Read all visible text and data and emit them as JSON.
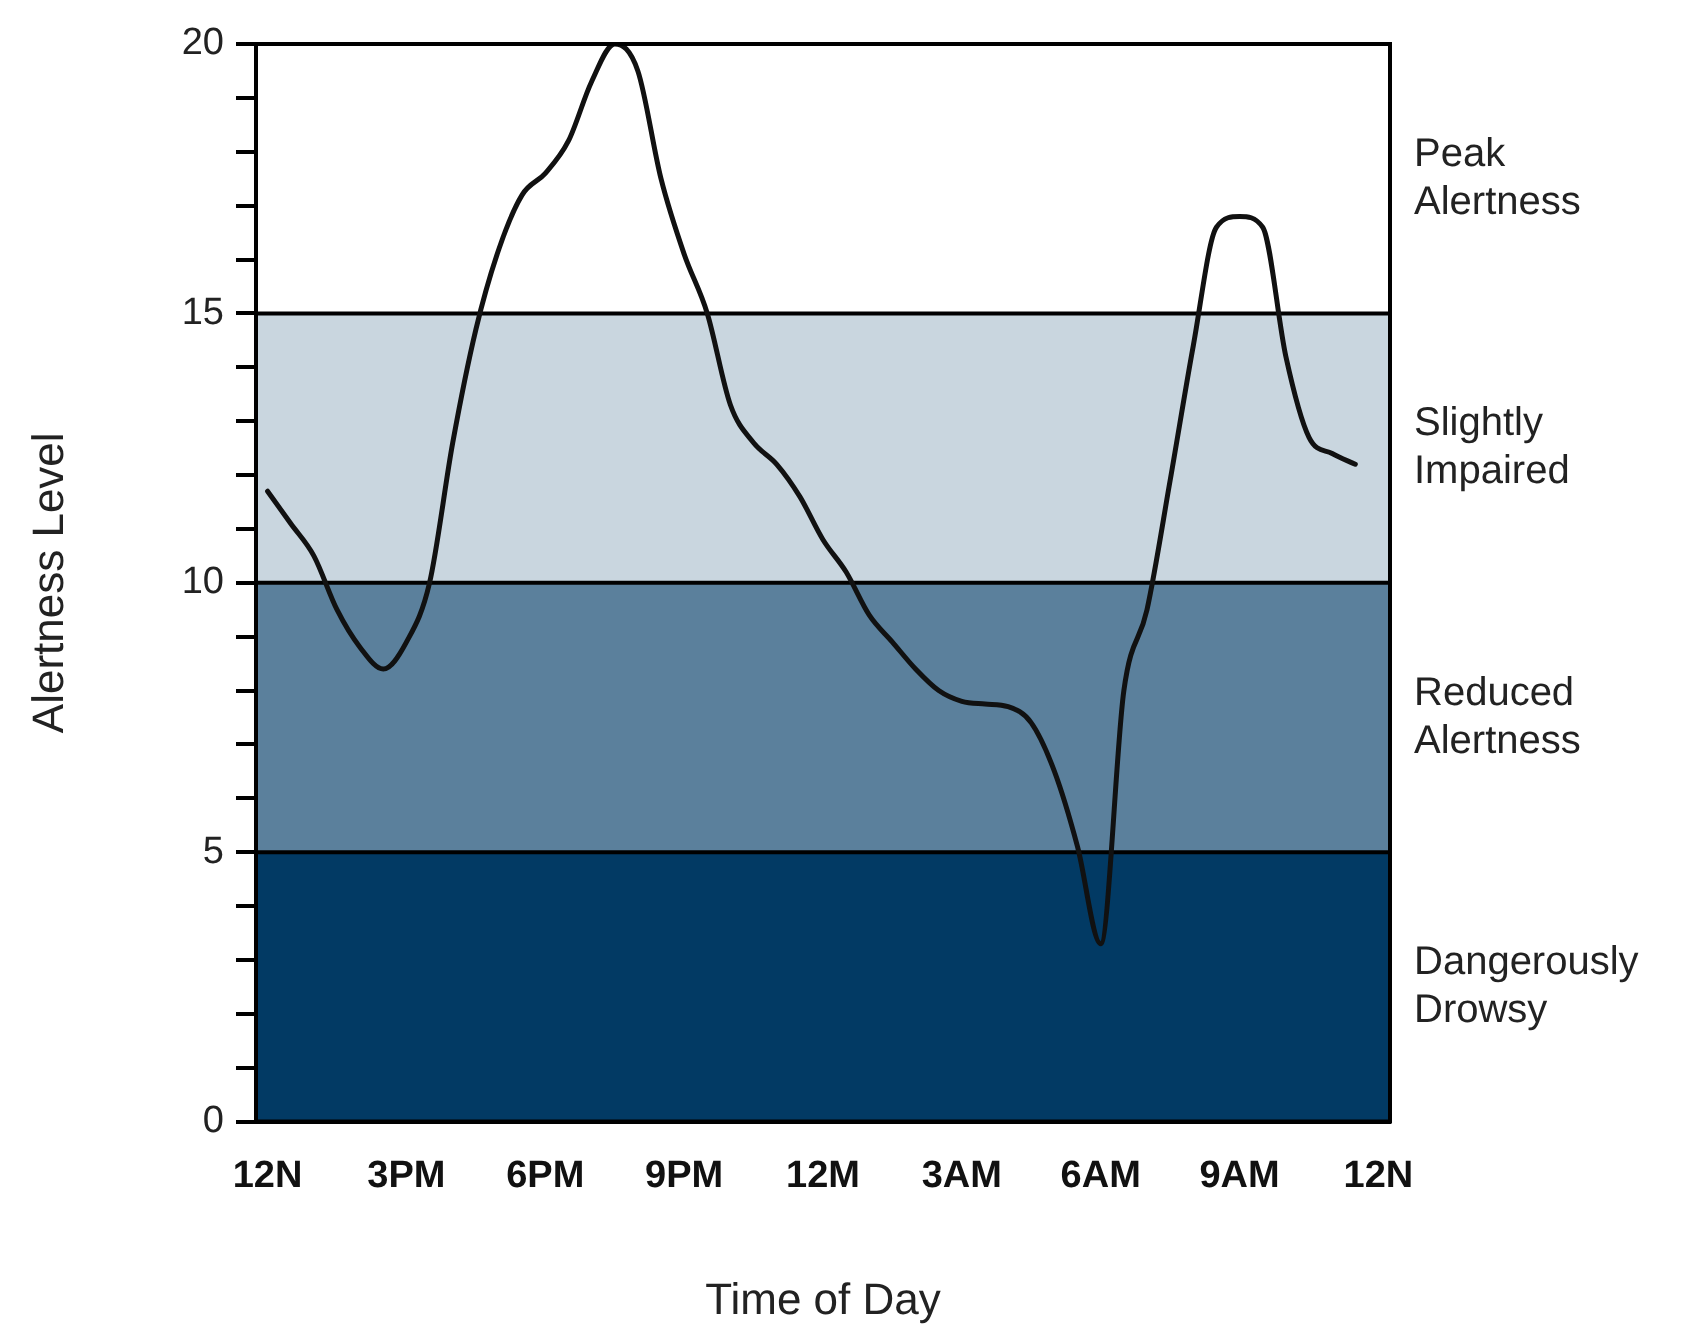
{
  "chart_data": {
    "type": "line",
    "xlabel": "Time of Day",
    "ylabel": "Alertness Level",
    "categories": [
      "12N",
      null,
      null,
      null,
      null,
      null,
      "3PM",
      null,
      null,
      null,
      null,
      null,
      "6PM",
      null,
      null,
      null,
      null,
      null,
      "9PM",
      null,
      null,
      null,
      null,
      null,
      "12M",
      null,
      null,
      null,
      null,
      null,
      "3AM",
      null,
      null,
      null,
      null,
      null,
      "6AM",
      null,
      null,
      null,
      null,
      null,
      "9AM",
      null,
      null,
      null,
      null,
      null,
      "12N"
    ],
    "series": [
      {
        "color": "#111111",
        "values": [
          11.7,
          11.1,
          10.5,
          9.5,
          8.8,
          8.4,
          8.9,
          10.0,
          12.6,
          14.7,
          16.2,
          17.2,
          17.6,
          18.2,
          19.3,
          20.0,
          19.5,
          17.5,
          16.1,
          15.0,
          13.3,
          12.6,
          12.2,
          11.6,
          10.8,
          10.2,
          9.4,
          8.9,
          8.4,
          8.0,
          7.8,
          7.75,
          7.7,
          7.4,
          6.5,
          5.1,
          3.3,
          8.0,
          9.5,
          11.9,
          14.4,
          16.6,
          16.8,
          16.6,
          14.2,
          12.7,
          12.4,
          12.2,
          null
        ]
      }
    ],
    "ylim": [
      0,
      20
    ],
    "yticks": [
      0,
      {
        "value": 1,
        "label": null
      },
      {
        "value": 2,
        "label": null
      },
      {
        "value": 3,
        "label": null
      },
      {
        "value": 4,
        "label": null
      },
      5,
      {
        "value": 6,
        "label": null
      },
      {
        "value": 7,
        "label": null
      },
      {
        "value": 8,
        "label": null
      },
      {
        "value": 9,
        "label": null
      },
      10,
      {
        "value": 11,
        "label": null
      },
      {
        "value": 12,
        "label": null
      },
      {
        "value": 13,
        "label": null
      },
      {
        "value": 14,
        "label": null
      },
      15,
      {
        "value": 16,
        "label": null
      },
      {
        "value": 17,
        "label": null
      },
      {
        "value": 18,
        "label": null
      },
      {
        "value": 19,
        "label": null
      },
      20
    ],
    "bands": [
      {
        "axis": "y",
        "from": 0,
        "to": 5,
        "label": "Dangerously Drowsy",
        "color": "#023a64"
      },
      {
        "axis": "y",
        "from": 5,
        "to": 10,
        "label": "Reduced Alertness",
        "color": "#5b809c"
      },
      {
        "axis": "y",
        "from": 10,
        "to": 15,
        "label": "Slightly Impaired",
        "color": "#c9d6df"
      }
    ],
    "ref_lines": [
      {
        "axis": "y",
        "value": 5,
        "color": "#000000"
      },
      {
        "axis": "y",
        "value": 10,
        "color": "#000000"
      },
      {
        "axis": "y",
        "value": 15,
        "color": "#000000"
      }
    ],
    "annotations": [
      "Peak Alertness"
    ],
    "grid": false,
    "legend": false,
    "marker": "none",
    "line_style": "solid"
  }
}
